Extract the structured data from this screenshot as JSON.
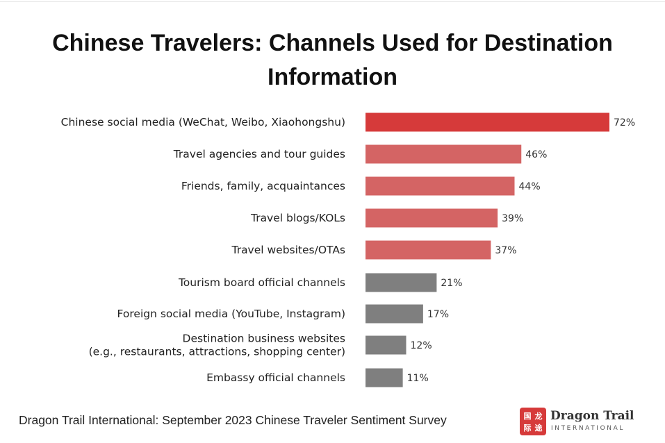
{
  "chart_data": {
    "type": "bar",
    "orientation": "horizontal",
    "title": "Chinese Travelers: Channels Used for Destination Information",
    "title_lines": [
      "Chinese Travelers: Channels Used for Destination",
      "Information"
    ],
    "categories": [
      "Chinese social media (WeChat, Weibo, Xiaohongshu)",
      "Travel agencies and tour guides",
      "Friends, family, acquaintances",
      "Travel blogs/KOLs",
      "Travel websites/OTAs",
      "Tourism board official channels",
      "Foreign social media (YouTube, Instagram)",
      "Destination business websites (e.g., restaurants, attractions, shopping center)",
      "Embassy official channels"
    ],
    "category_lines": [
      [
        "Chinese social media (WeChat, Weibo, Xiaohongshu)"
      ],
      [
        "Travel agencies and tour guides"
      ],
      [
        "Friends, family, acquaintances"
      ],
      [
        "Travel blogs/KOLs"
      ],
      [
        "Travel websites/OTAs"
      ],
      [
        "Tourism board official channels"
      ],
      [
        "Foreign social media (YouTube, Instagram)"
      ],
      [
        "Destination business websites",
        "(e.g., restaurants, attractions, shopping center)"
      ],
      [
        "Embassy official channels"
      ]
    ],
    "values": [
      72,
      46,
      44,
      39,
      37,
      21,
      17,
      12,
      11
    ],
    "value_labels": [
      "72%",
      "46%",
      "44%",
      "39%",
      "37%",
      "21%",
      "17%",
      "12%",
      "11%"
    ],
    "bar_colors": [
      "#d63a3a",
      "#d46464",
      "#d46464",
      "#d46464",
      "#d46464",
      "#7f7f7f",
      "#7f7f7f",
      "#7f7f7f",
      "#7f7f7f"
    ],
    "unit": "%",
    "xlim": [
      0,
      72
    ],
    "grid": false,
    "legend": "none"
  },
  "source": "Dragon Trail International: September 2023 Chinese Traveler Sentiment Survey",
  "logo": {
    "name": "Dragon Trail",
    "sub": "INTERNATIONAL",
    "seal_chars": [
      "国",
      "龙",
      "际",
      "途"
    ],
    "seal_color": "#d63a3a"
  }
}
